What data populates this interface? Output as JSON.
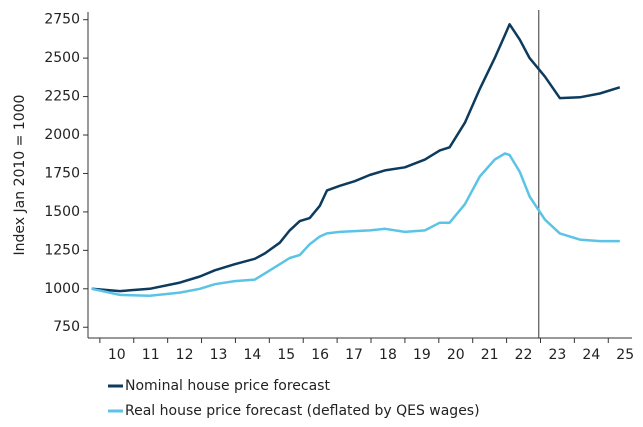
{
  "chart_data": {
    "type": "line",
    "y_label": "Index Jan 2010 = 1000",
    "x": [
      9.76,
      10.59,
      11.47,
      12.36,
      12.95,
      13.39,
      13.98,
      14.57,
      14.87,
      15.31,
      15.6,
      15.9,
      16.19,
      16.49,
      16.7,
      17.08,
      17.52,
      17.96,
      18.41,
      19.0,
      19.59,
      20.03,
      20.32,
      20.77,
      21.21,
      21.65,
      21.95,
      22.09,
      22.39,
      22.68,
      23.13,
      23.57,
      24.16,
      24.75,
      25.34
    ],
    "series": [
      {
        "name": "Nominal house price forecast",
        "color": "#0d3b5e",
        "values": [
          1000,
          985,
          1000,
          1040,
          1080,
          1120,
          1160,
          1195,
          1230,
          1300,
          1380,
          1440,
          1460,
          1540,
          1640,
          1670,
          1700,
          1740,
          1770,
          1790,
          1840,
          1900,
          1920,
          2080,
          2300,
          2500,
          2650,
          2720,
          2620,
          2500,
          2380,
          2240,
          2245,
          2270,
          2310
        ]
      },
      {
        "name": "Real house price forecast (deflated by QES wages)",
        "color": "#5bc4e6",
        "values": [
          1000,
          960,
          955,
          975,
          1000,
          1030,
          1050,
          1060,
          1100,
          1160,
          1200,
          1220,
          1290,
          1340,
          1360,
          1370,
          1375,
          1380,
          1390,
          1370,
          1380,
          1430,
          1430,
          1550,
          1730,
          1840,
          1880,
          1870,
          1760,
          1600,
          1450,
          1360,
          1320,
          1310,
          1310
        ]
      }
    ],
    "xlim": [
      9.65,
      25.7
    ],
    "xticks": [
      {
        "value": 10.5,
        "label": "10"
      },
      {
        "value": 11.5,
        "label": "11"
      },
      {
        "value": 12.5,
        "label": "12"
      },
      {
        "value": 13.5,
        "label": "13"
      },
      {
        "value": 14.5,
        "label": "14"
      },
      {
        "value": 15.5,
        "label": "15"
      },
      {
        "value": 16.5,
        "label": "16"
      },
      {
        "value": 17.5,
        "label": "17"
      },
      {
        "value": 18.5,
        "label": "18"
      },
      {
        "value": 19.5,
        "label": "19"
      },
      {
        "value": 20.5,
        "label": "20"
      },
      {
        "value": 21.5,
        "label": "21"
      },
      {
        "value": 22.5,
        "label": "22"
      },
      {
        "value": 23.5,
        "label": "23"
      },
      {
        "value": 24.5,
        "label": "24"
      },
      {
        "value": 25.5,
        "label": "25"
      }
    ],
    "ylim": [
      680,
      2800
    ],
    "yticks": [
      750,
      1000,
      1250,
      1500,
      1750,
      2000,
      2250,
      2500,
      2750
    ],
    "vertical_line_x": 22.95
  }
}
